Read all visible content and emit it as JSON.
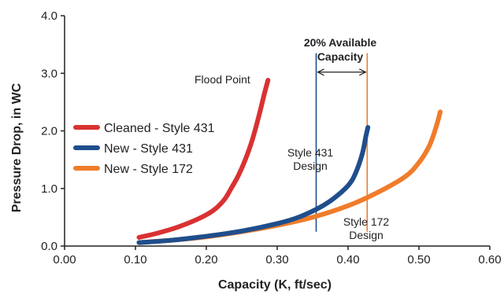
{
  "chart_data": {
    "type": "line",
    "xlabel": "Capacity (K, ft/sec)",
    "ylabel": "Pressure Drop, in WC",
    "xlim": [
      0.0,
      0.6
    ],
    "ylim": [
      0.0,
      4.0
    ],
    "x_ticks": [
      "0.00",
      "0.10",
      "0.20",
      "0.30",
      "0.40",
      "0.50",
      "0.60"
    ],
    "y_ticks": [
      "0.0",
      "1.0",
      "2.0",
      "3.0",
      "4.0"
    ],
    "grid": false,
    "legend_position": "left",
    "series": [
      {
        "name": "Cleaned - Style 431",
        "color": "#d93232",
        "points": [
          [
            0.105,
            0.15
          ],
          [
            0.13,
            0.22
          ],
          [
            0.16,
            0.33
          ],
          [
            0.19,
            0.48
          ],
          [
            0.21,
            0.62
          ],
          [
            0.225,
            0.8
          ],
          [
            0.235,
            1.0
          ],
          [
            0.245,
            1.22
          ],
          [
            0.255,
            1.5
          ],
          [
            0.265,
            1.85
          ],
          [
            0.275,
            2.3
          ],
          [
            0.282,
            2.65
          ],
          [
            0.287,
            2.88
          ]
        ]
      },
      {
        "name": "New - Style 431",
        "color": "#1f4e8c",
        "points": [
          [
            0.105,
            0.06
          ],
          [
            0.15,
            0.1
          ],
          [
            0.2,
            0.17
          ],
          [
            0.25,
            0.26
          ],
          [
            0.3,
            0.39
          ],
          [
            0.33,
            0.5
          ],
          [
            0.36,
            0.67
          ],
          [
            0.38,
            0.83
          ],
          [
            0.4,
            1.05
          ],
          [
            0.41,
            1.25
          ],
          [
            0.42,
            1.6
          ],
          [
            0.425,
            1.9
          ],
          [
            0.428,
            2.06
          ]
        ]
      },
      {
        "name": "New - Style 172",
        "color": "#f07c2a",
        "points": [
          [
            0.105,
            0.06
          ],
          [
            0.15,
            0.1
          ],
          [
            0.2,
            0.16
          ],
          [
            0.25,
            0.25
          ],
          [
            0.3,
            0.36
          ],
          [
            0.35,
            0.5
          ],
          [
            0.4,
            0.7
          ],
          [
            0.44,
            0.92
          ],
          [
            0.48,
            1.2
          ],
          [
            0.5,
            1.45
          ],
          [
            0.515,
            1.75
          ],
          [
            0.525,
            2.1
          ],
          [
            0.53,
            2.33
          ]
        ]
      }
    ],
    "annotations": {
      "flood_point": "Flood Point",
      "available_line1": "20% Available",
      "available_line2": "Capacity",
      "style431_design_line1": "Style 431",
      "style431_design_line2": "Design",
      "style172_design_line1": "Style 172",
      "style172_design_line2": "Design"
    },
    "design_lines": [
      {
        "name": "Style 431 Design",
        "x": 0.355,
        "y_range": [
          0.25,
          3.35
        ],
        "color": "#1f4e8c"
      },
      {
        "name": "Style 172 Design",
        "x": 0.427,
        "y_range": [
          0.25,
          3.35
        ],
        "color": "#f07c2a"
      }
    ],
    "available_capacity_arrow": {
      "from_x": 0.355,
      "to_x": 0.427,
      "y": 3.02
    }
  }
}
